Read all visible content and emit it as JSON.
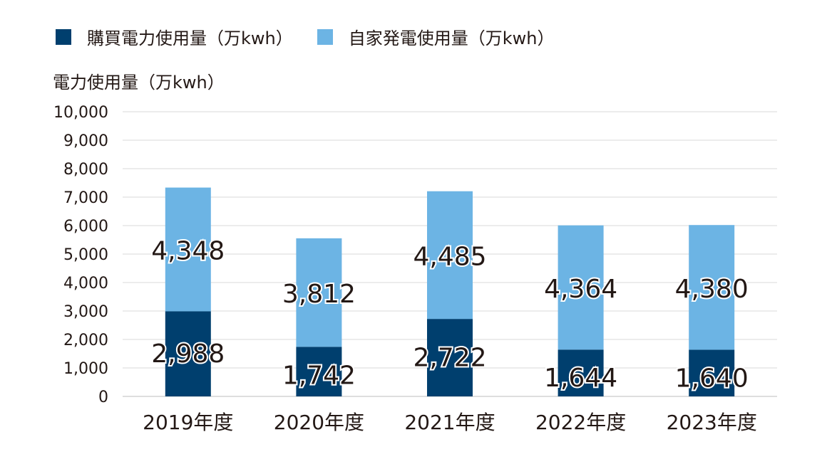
{
  "chart_data": {
    "type": "bar",
    "stacked": true,
    "categories": [
      "2019年度",
      "2020年度",
      "2021年度",
      "2022年度",
      "2023年度"
    ],
    "series": [
      {
        "name": "購買電力使用量（万kwh）",
        "color": "#003f6e",
        "values": [
          2988,
          1742,
          2722,
          1644,
          1640
        ]
      },
      {
        "name": "自家発電使用量（万kwh）",
        "color": "#6cb4e4",
        "values": [
          4348,
          3812,
          4485,
          4364,
          4380
        ]
      }
    ],
    "ylabel": "電力使用量（万kwh）",
    "ylim": [
      0,
      10000
    ],
    "yticks": [
      "0",
      "1,000",
      "2,000",
      "3,000",
      "4,000",
      "5,000",
      "6,000",
      "7,000",
      "8,000",
      "9,000",
      "10,000"
    ],
    "data_labels": [
      [
        "2,988",
        "1,742",
        "2,722",
        "1,644",
        "1,640"
      ],
      [
        "4,348",
        "3,812",
        "4,485",
        "4,364",
        "4,380"
      ]
    ],
    "grid": true,
    "legend_position": "top-left"
  }
}
